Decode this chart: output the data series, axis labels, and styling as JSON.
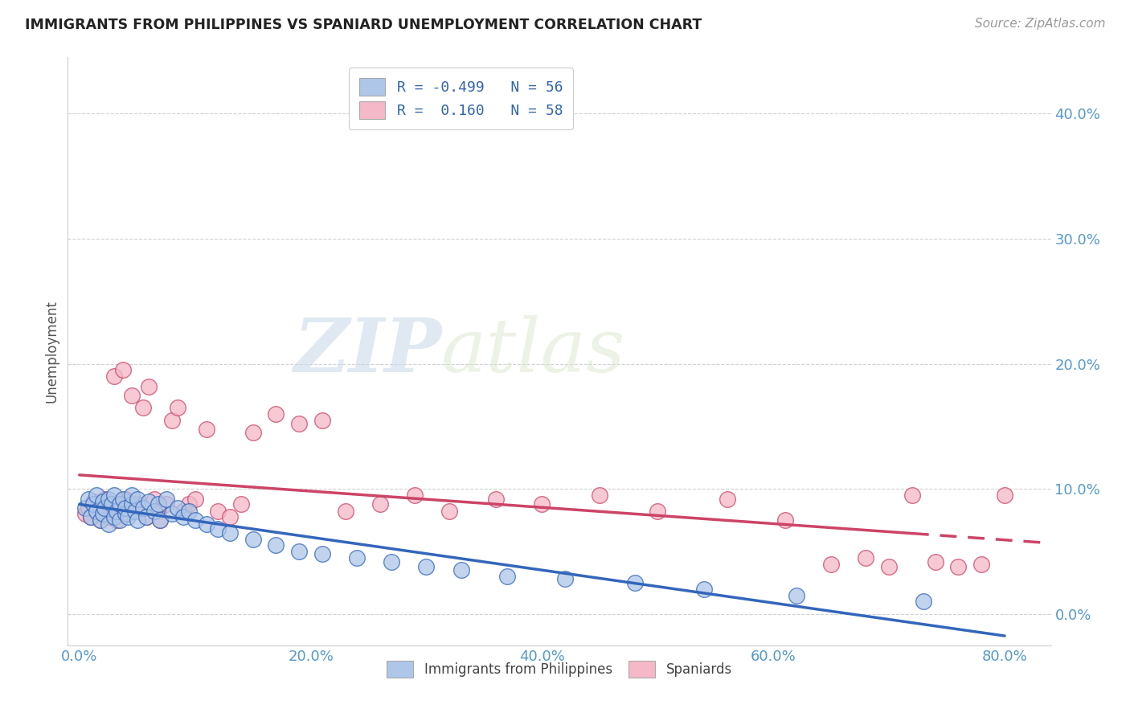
{
  "title": "IMMIGRANTS FROM PHILIPPINES VS SPANIARD UNEMPLOYMENT CORRELATION CHART",
  "source": "Source: ZipAtlas.com",
  "xlabel_ticks": [
    "0.0%",
    "20.0%",
    "40.0%",
    "60.0%",
    "80.0%"
  ],
  "xlabel_tick_vals": [
    0.0,
    0.2,
    0.4,
    0.6,
    0.8
  ],
  "ylabel": "Unemployment",
  "ylabel_ticks": [
    "0.0%",
    "10.0%",
    "20.0%",
    "30.0%",
    "40.0%"
  ],
  "ylabel_tick_vals": [
    0.0,
    0.1,
    0.2,
    0.3,
    0.4
  ],
  "xlim": [
    -0.01,
    0.84
  ],
  "ylim": [
    -0.025,
    0.445
  ],
  "blue_R": -0.499,
  "blue_N": 56,
  "pink_R": 0.16,
  "pink_N": 58,
  "blue_color": "#aec6e8",
  "blue_line_color": "#3366bb",
  "pink_color": "#f4b8c8",
  "pink_line_color": "#cc4466",
  "background_color": "#ffffff",
  "watermark_zip": "ZIP",
  "watermark_atlas": "atlas",
  "legend_label_blue": "Immigrants from Philippines",
  "legend_label_pink": "Spaniards",
  "blue_scatter_x": [
    0.005,
    0.008,
    0.01,
    0.012,
    0.015,
    0.015,
    0.018,
    0.02,
    0.02,
    0.022,
    0.025,
    0.025,
    0.028,
    0.03,
    0.03,
    0.032,
    0.035,
    0.035,
    0.038,
    0.04,
    0.04,
    0.042,
    0.045,
    0.045,
    0.048,
    0.05,
    0.05,
    0.055,
    0.058,
    0.06,
    0.065,
    0.068,
    0.07,
    0.075,
    0.08,
    0.085,
    0.09,
    0.095,
    0.1,
    0.11,
    0.12,
    0.13,
    0.15,
    0.17,
    0.19,
    0.21,
    0.24,
    0.27,
    0.3,
    0.33,
    0.37,
    0.42,
    0.48,
    0.54,
    0.62,
    0.73
  ],
  "blue_scatter_y": [
    0.085,
    0.092,
    0.078,
    0.088,
    0.082,
    0.095,
    0.075,
    0.09,
    0.08,
    0.085,
    0.092,
    0.072,
    0.088,
    0.078,
    0.095,
    0.082,
    0.088,
    0.075,
    0.092,
    0.08,
    0.085,
    0.078,
    0.088,
    0.095,
    0.082,
    0.075,
    0.092,
    0.085,
    0.078,
    0.09,
    0.082,
    0.088,
    0.075,
    0.092,
    0.08,
    0.085,
    0.078,
    0.082,
    0.075,
    0.072,
    0.068,
    0.065,
    0.06,
    0.055,
    0.05,
    0.048,
    0.045,
    0.042,
    0.038,
    0.035,
    0.03,
    0.028,
    0.025,
    0.02,
    0.015,
    0.01
  ],
  "pink_scatter_x": [
    0.005,
    0.008,
    0.01,
    0.012,
    0.015,
    0.018,
    0.02,
    0.022,
    0.025,
    0.025,
    0.028,
    0.03,
    0.032,
    0.035,
    0.038,
    0.04,
    0.042,
    0.045,
    0.048,
    0.05,
    0.055,
    0.058,
    0.06,
    0.065,
    0.068,
    0.07,
    0.075,
    0.08,
    0.085,
    0.09,
    0.095,
    0.1,
    0.11,
    0.12,
    0.13,
    0.14,
    0.15,
    0.17,
    0.19,
    0.21,
    0.23,
    0.26,
    0.29,
    0.32,
    0.36,
    0.4,
    0.45,
    0.5,
    0.56,
    0.61,
    0.65,
    0.68,
    0.7,
    0.72,
    0.74,
    0.76,
    0.78,
    0.8
  ],
  "pink_scatter_y": [
    0.08,
    0.085,
    0.078,
    0.09,
    0.082,
    0.075,
    0.088,
    0.092,
    0.078,
    0.085,
    0.082,
    0.19,
    0.075,
    0.088,
    0.195,
    0.092,
    0.08,
    0.175,
    0.085,
    0.088,
    0.165,
    0.078,
    0.182,
    0.092,
    0.082,
    0.075,
    0.088,
    0.155,
    0.165,
    0.082,
    0.088,
    0.092,
    0.148,
    0.082,
    0.078,
    0.088,
    0.145,
    0.16,
    0.152,
    0.155,
    0.082,
    0.088,
    0.095,
    0.082,
    0.092,
    0.088,
    0.095,
    0.082,
    0.092,
    0.075,
    0.04,
    0.045,
    0.038,
    0.095,
    0.042,
    0.038,
    0.04,
    0.095
  ]
}
